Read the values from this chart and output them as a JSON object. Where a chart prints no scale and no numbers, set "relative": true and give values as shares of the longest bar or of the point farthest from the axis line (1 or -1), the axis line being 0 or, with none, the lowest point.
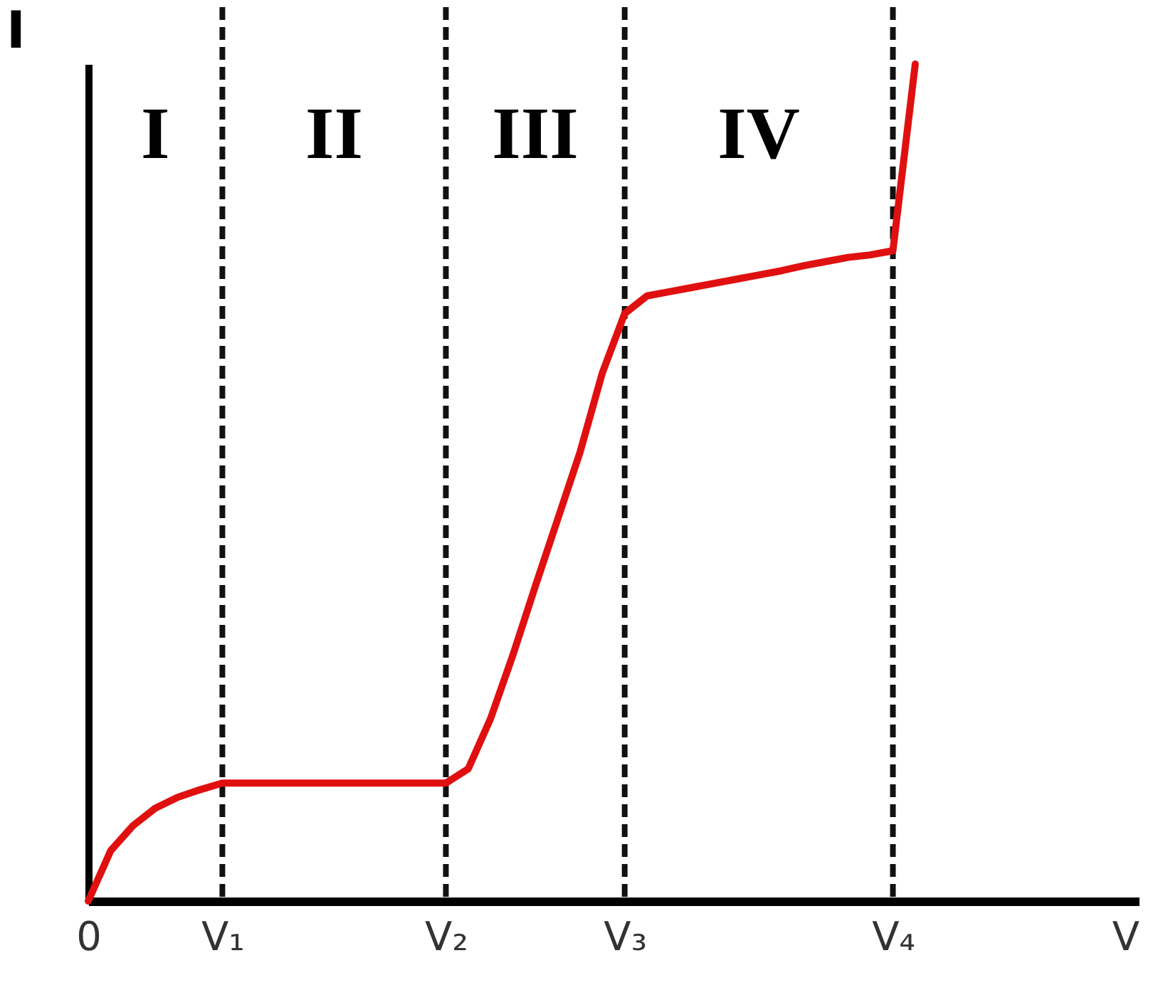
{
  "chart_data": {
    "type": "line",
    "relative": true,
    "xlabel": "V",
    "ylabel": "I",
    "categories": [
      "0",
      null,
      null,
      null,
      null,
      null,
      "V₁",
      null,
      null,
      null,
      null,
      null,
      null,
      null,
      null,
      null,
      "V₂",
      null,
      null,
      null,
      null,
      null,
      null,
      null,
      "V₃",
      null,
      null,
      null,
      null,
      null,
      null,
      null,
      null,
      null,
      null,
      null,
      "V₄",
      null,
      null,
      null,
      null,
      null,
      null,
      null,
      null,
      null,
      null,
      null
    ],
    "series": [
      {
        "color": "#e01010",
        "values": [
          0,
          0.06,
          0.09,
          0.111,
          0.124,
          0.133,
          0.141,
          0.141,
          0.141,
          0.141,
          0.141,
          0.141,
          0.141,
          0.141,
          0.141,
          0.141,
          0.141,
          0.158,
          0.218,
          0.294,
          0.376,
          0.456,
          0.536,
          0.631,
          0.702,
          0.723,
          0.728,
          0.733,
          0.738,
          0.743,
          0.748,
          0.753,
          0.759,
          0.764,
          0.769,
          0.772,
          0.777,
          1,
          null,
          null,
          null,
          null,
          null,
          null,
          null,
          null,
          null,
          null
        ]
      }
    ],
    "ref_lines": [
      {
        "axis": "x",
        "value": "V₁",
        "color": "#111111",
        "line_style": "dashed"
      },
      {
        "axis": "x",
        "value": "V₂",
        "color": "#111111",
        "line_style": "dashed"
      },
      {
        "axis": "x",
        "value": "V₃",
        "color": "#111111",
        "line_style": "dashed"
      },
      {
        "axis": "x",
        "value": "V₄",
        "color": "#111111",
        "line_style": "dashed"
      }
    ],
    "annotations": [
      "I",
      "II",
      "III",
      "IV"
    ],
    "grid": false,
    "marker": "none",
    "line_style": "solid"
  }
}
